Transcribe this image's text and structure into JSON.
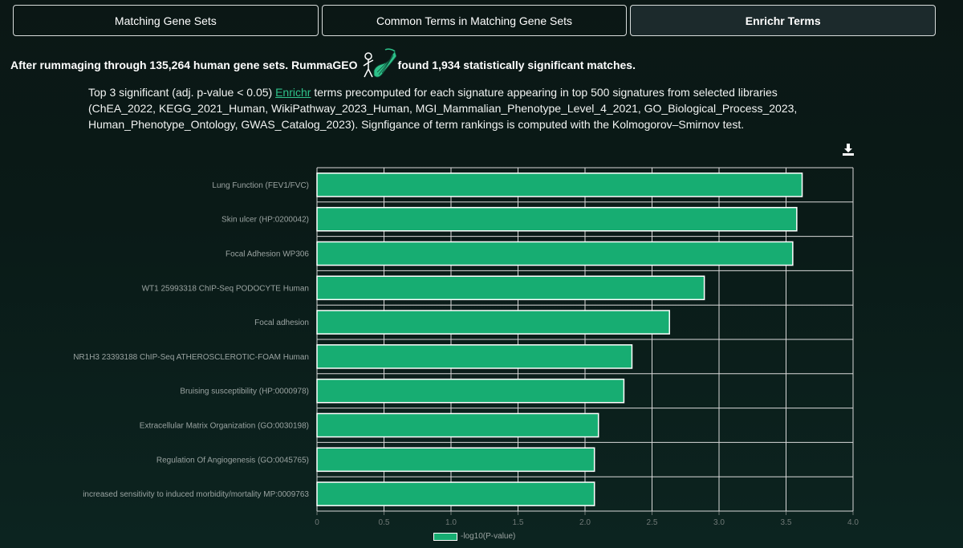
{
  "tabs": [
    {
      "label": "Matching Gene Sets"
    },
    {
      "label": "Common Terms in Matching Gene Sets"
    },
    {
      "label": "Enrichr Terms"
    }
  ],
  "headline": {
    "before": "After rummaging through 135,264 human gene sets. RummaGEO",
    "after": "found 1,934 statistically significant matches."
  },
  "description": {
    "prefix": "Top 3 significant (adj. p-value < 0.05) ",
    "link": "Enrichr",
    "suffix": " terms precomputed for each signature appearing in top 500 signatures from selected libraries (ChEA_2022, KEGG_2021_Human, WikiPathway_2023_Human, MGI_Mammalian_Phenotype_Level_4_2021, GO_Biological_Process_2023, Human_Phenotype_Ontology, GWAS_Catalog_2023). Signfigance of term rankings is computed with the Kolmogorov–Smirnov test."
  },
  "icons": {
    "download": "download-icon",
    "logo": "rummageo-logo"
  },
  "colors": {
    "bar": "#17ad72",
    "bar_border": "#ffffff",
    "link": "#2ec28a",
    "grid": "#d9d9d9"
  },
  "chart_data": {
    "type": "bar",
    "orientation": "horizontal",
    "categories": [
      "Lung Function (FEV1/FVC)",
      "Skin ulcer (HP:0200042)",
      "Focal Adhesion WP306",
      "WT1 25993318 ChIP-Seq PODOCYTE Human",
      "Focal adhesion",
      "NR1H3 23393188 ChIP-Seq ATHEROSCLEROTIC-FOAM Human",
      "Bruising susceptibility (HP:0000978)",
      "Extracellular Matrix Organization (GO:0030198)",
      "Regulation Of Angiogenesis (GO:0045765)",
      "increased sensitivity to induced morbidity/mortality MP:0009763"
    ],
    "series": [
      {
        "name": "-log10(P-value)",
        "values": [
          3.62,
          3.58,
          3.55,
          2.89,
          2.63,
          2.35,
          2.29,
          2.1,
          2.07,
          2.07
        ]
      }
    ],
    "xlim": [
      0,
      4.0
    ],
    "xticks": [
      "0",
      "0.5",
      "1.0",
      "1.5",
      "2.0",
      "2.5",
      "3.0",
      "3.5",
      "4.0"
    ],
    "grid": true,
    "legend": "bottom-center"
  }
}
